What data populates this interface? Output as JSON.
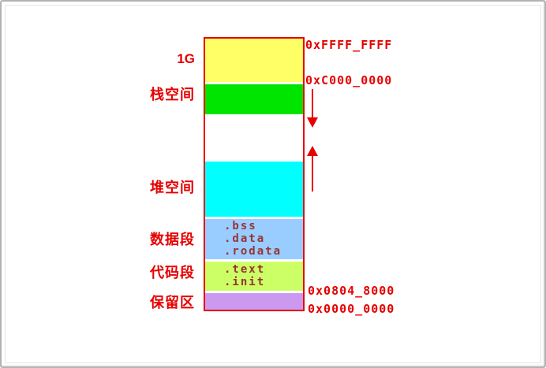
{
  "diagram": {
    "type": "memory-layout",
    "labels": {
      "size": "1G",
      "stack": "栈空间",
      "heap": "堆空间",
      "data": "数据段",
      "code": "代码段",
      "reserved": "保留区"
    },
    "addresses": {
      "top": "0xFFFF_FFFF",
      "kernel_base": "0xC000_0000",
      "text_base": "0x0804_8000",
      "bottom": "0x0000_0000"
    },
    "sections": {
      "data": [
        ".bss",
        ".data",
        ".rodata"
      ],
      "code": [
        ".text",
        ".init"
      ]
    },
    "arrows": {
      "stack_growth": "down",
      "heap_growth": "up"
    },
    "colors": {
      "outline": "#e60000",
      "label_text": "#e60000",
      "address_text": "#e60000",
      "section_text": "#993333",
      "kernel_segment": "#ffff66",
      "stack_segment": "#00e500",
      "heap_segment": "#00ffff",
      "data_segment": "#99ccff",
      "code_segment": "#ccff66",
      "reserved_segment": "#cc99f0"
    }
  }
}
